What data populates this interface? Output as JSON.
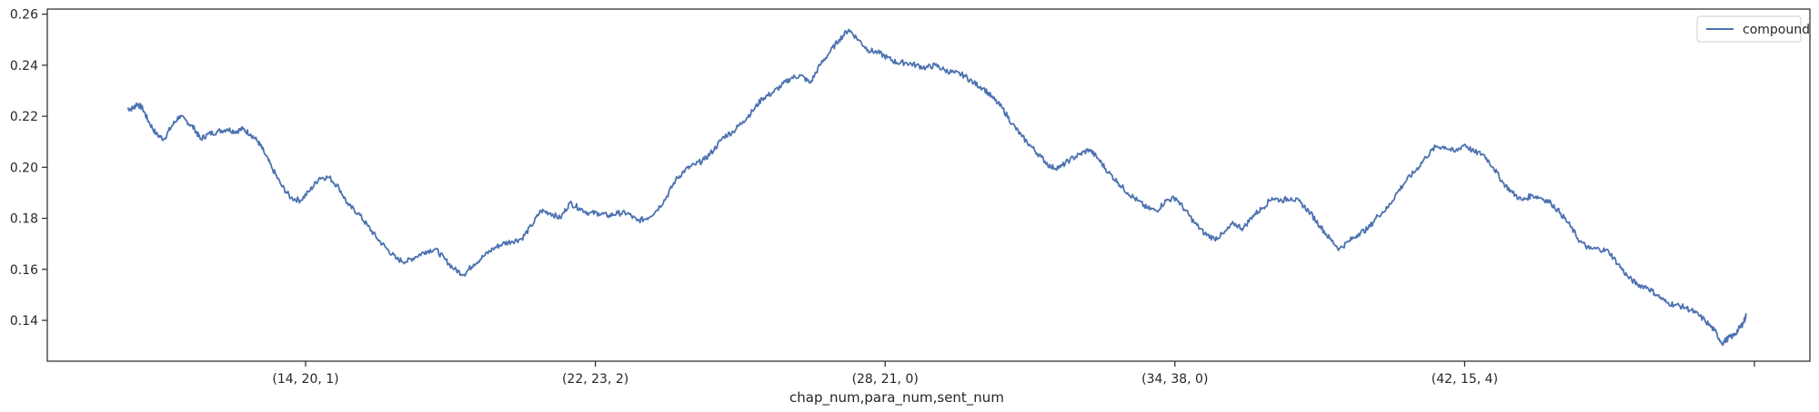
{
  "chart_data": {
    "type": "line",
    "xlabel": "chap_num,para_num,sent_num",
    "ylabel": "",
    "x_tick_labels": [
      "(14, 20, 1)",
      "(22, 23, 2)",
      "(28, 21, 0)",
      "(34, 38, 0)",
      "(42, 15, 4)",
      ""
    ],
    "y_ticks": [
      0.14,
      0.16,
      0.18,
      0.2,
      0.22,
      0.24,
      0.26
    ],
    "y_tick_labels": [
      "0.14",
      "0.16",
      "0.18",
      "0.20",
      "0.22",
      "0.24",
      "0.26"
    ],
    "ylim": [
      0.124,
      0.262
    ],
    "grid": false,
    "legend_position": "top-right",
    "series": [
      {
        "name": "compound",
        "color": "#4c72b0",
        "points": [
          [
            0.0,
            0.223
          ],
          [
            0.6,
            0.223
          ],
          [
            1.0,
            0.225
          ],
          [
            1.6,
            0.223
          ],
          [
            2.2,
            0.218
          ],
          [
            3.0,
            0.213
          ],
          [
            3.8,
            0.211
          ],
          [
            4.6,
            0.216
          ],
          [
            5.4,
            0.22
          ],
          [
            6.2,
            0.218
          ],
          [
            7.0,
            0.215
          ],
          [
            7.6,
            0.211
          ],
          [
            8.4,
            0.213
          ],
          [
            9.4,
            0.214
          ],
          [
            10.4,
            0.215
          ],
          [
            11.2,
            0.214
          ],
          [
            12.0,
            0.215
          ],
          [
            12.8,
            0.213
          ],
          [
            13.6,
            0.21
          ],
          [
            14.2,
            0.206
          ],
          [
            15.0,
            0.2
          ],
          [
            16.0,
            0.193
          ],
          [
            17.0,
            0.188
          ],
          [
            18.0,
            0.187
          ],
          [
            19.0,
            0.191
          ],
          [
            20.0,
            0.196
          ],
          [
            21.0,
            0.196
          ],
          [
            22.0,
            0.192
          ],
          [
            23.0,
            0.185
          ],
          [
            24.0,
            0.182
          ],
          [
            25.0,
            0.177
          ],
          [
            26.0,
            0.172
          ],
          [
            27.0,
            0.168
          ],
          [
            28.0,
            0.164
          ],
          [
            29.0,
            0.163
          ],
          [
            30.0,
            0.165
          ],
          [
            31.0,
            0.167
          ],
          [
            32.0,
            0.168
          ],
          [
            33.0,
            0.164
          ],
          [
            34.0,
            0.16
          ],
          [
            35.0,
            0.158
          ],
          [
            36.0,
            0.162
          ],
          [
            37.0,
            0.165
          ],
          [
            38.0,
            0.168
          ],
          [
            39.0,
            0.17
          ],
          [
            40.0,
            0.171
          ],
          [
            41.0,
            0.172
          ],
          [
            42.0,
            0.177
          ],
          [
            43.0,
            0.183
          ],
          [
            44.0,
            0.182
          ],
          [
            45.0,
            0.18
          ],
          [
            46.0,
            0.186
          ],
          [
            47.0,
            0.184
          ],
          [
            48.0,
            0.182
          ],
          [
            49.0,
            0.182
          ],
          [
            50.0,
            0.181
          ],
          [
            51.0,
            0.182
          ],
          [
            52.0,
            0.182
          ],
          [
            53.0,
            0.179
          ],
          [
            54.0,
            0.18
          ],
          [
            55.0,
            0.183
          ],
          [
            56.0,
            0.188
          ],
          [
            57.0,
            0.195
          ],
          [
            58.0,
            0.199
          ],
          [
            59.0,
            0.201
          ],
          [
            60.0,
            0.203
          ],
          [
            61.0,
            0.207
          ],
          [
            62.0,
            0.212
          ],
          [
            63.0,
            0.214
          ],
          [
            64.0,
            0.218
          ],
          [
            65.0,
            0.222
          ],
          [
            66.0,
            0.227
          ],
          [
            67.0,
            0.229
          ],
          [
            68.0,
            0.232
          ],
          [
            69.0,
            0.235
          ],
          [
            70.0,
            0.236
          ],
          [
            71.0,
            0.233
          ],
          [
            72.0,
            0.24
          ],
          [
            73.0,
            0.245
          ],
          [
            74.0,
            0.25
          ],
          [
            75.0,
            0.254
          ],
          [
            76.0,
            0.25
          ],
          [
            77.0,
            0.246
          ],
          [
            78.0,
            0.245
          ],
          [
            79.0,
            0.243
          ],
          [
            80.0,
            0.241
          ],
          [
            81.0,
            0.241
          ],
          [
            82.0,
            0.24
          ],
          [
            83.0,
            0.239
          ],
          [
            84.0,
            0.24
          ],
          [
            85.0,
            0.238
          ],
          [
            86.0,
            0.237
          ],
          [
            87.0,
            0.236
          ],
          [
            88.0,
            0.233
          ],
          [
            89.0,
            0.231
          ],
          [
            90.0,
            0.227
          ],
          [
            91.0,
            0.223
          ],
          [
            92.0,
            0.217
          ],
          [
            93.0,
            0.212
          ],
          [
            94.0,
            0.208
          ],
          [
            95.0,
            0.204
          ],
          [
            96.0,
            0.2
          ],
          [
            97.0,
            0.2
          ],
          [
            98.0,
            0.203
          ],
          [
            99.0,
            0.205
          ],
          [
            100.0,
            0.207
          ],
          [
            101.0,
            0.203
          ],
          [
            102.0,
            0.198
          ],
          [
            103.0,
            0.194
          ],
          [
            104.0,
            0.19
          ],
          [
            105.0,
            0.187
          ],
          [
            106.0,
            0.184
          ],
          [
            107.0,
            0.183
          ],
          [
            108.0,
            0.187
          ],
          [
            109.0,
            0.188
          ],
          [
            110.0,
            0.183
          ],
          [
            111.0,
            0.178
          ],
          [
            112.0,
            0.174
          ],
          [
            113.0,
            0.172
          ],
          [
            114.0,
            0.174
          ],
          [
            115.0,
            0.178
          ],
          [
            116.0,
            0.176
          ],
          [
            117.0,
            0.181
          ],
          [
            118.0,
            0.184
          ],
          [
            119.0,
            0.188
          ],
          [
            120.0,
            0.187
          ],
          [
            121.0,
            0.188
          ],
          [
            122.0,
            0.186
          ],
          [
            123.0,
            0.182
          ],
          [
            124.0,
            0.177
          ],
          [
            125.0,
            0.172
          ],
          [
            126.0,
            0.168
          ],
          [
            127.0,
            0.171
          ],
          [
            128.0,
            0.174
          ],
          [
            129.0,
            0.176
          ],
          [
            130.0,
            0.181
          ],
          [
            131.0,
            0.184
          ],
          [
            132.0,
            0.19
          ],
          [
            133.0,
            0.195
          ],
          [
            134.0,
            0.199
          ],
          [
            135.0,
            0.204
          ],
          [
            136.0,
            0.208
          ],
          [
            137.0,
            0.208
          ],
          [
            138.0,
            0.206
          ],
          [
            139.0,
            0.209
          ],
          [
            140.0,
            0.206
          ],
          [
            141.0,
            0.205
          ],
          [
            142.0,
            0.2
          ],
          [
            143.0,
            0.194
          ],
          [
            144.0,
            0.19
          ],
          [
            145.0,
            0.187
          ],
          [
            146.0,
            0.189
          ],
          [
            147.0,
            0.188
          ],
          [
            148.0,
            0.186
          ],
          [
            149.0,
            0.182
          ],
          [
            150.0,
            0.177
          ],
          [
            151.0,
            0.171
          ],
          [
            152.0,
            0.168
          ],
          [
            153.0,
            0.168
          ],
          [
            154.0,
            0.167
          ],
          [
            155.0,
            0.162
          ],
          [
            156.0,
            0.157
          ],
          [
            157.0,
            0.154
          ],
          [
            158.0,
            0.153
          ],
          [
            159.0,
            0.15
          ],
          [
            160.0,
            0.147
          ],
          [
            161.0,
            0.146
          ],
          [
            162.0,
            0.145
          ],
          [
            163.0,
            0.143
          ],
          [
            164.0,
            0.14
          ],
          [
            165.0,
            0.136
          ],
          [
            165.8,
            0.131
          ],
          [
            166.4,
            0.133
          ],
          [
            167.0,
            0.134
          ],
          [
            167.6,
            0.137
          ],
          [
            168.0,
            0.139
          ],
          [
            168.3,
            0.142
          ]
        ]
      }
    ]
  }
}
